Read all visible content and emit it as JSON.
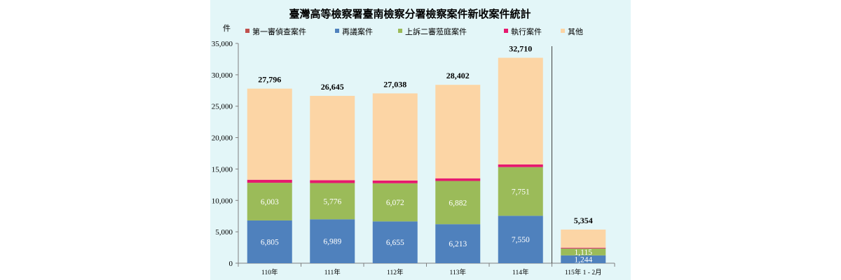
{
  "chart_data": {
    "type": "bar",
    "stacked": true,
    "title": "臺灣高等檢察署臺南檢察分署檢察案件新收案件統計",
    "ylabel": "件",
    "ylim": [
      0,
      35000
    ],
    "yticks": [
      "0",
      "5,000",
      "10,000",
      "15,000",
      "20,000",
      "25,000",
      "30,000",
      "35,000"
    ],
    "categories": [
      "110年",
      "111年",
      "112年",
      "113年",
      "114年",
      "115年 1 - 2月"
    ],
    "series": [
      {
        "name": "第一審偵查案件",
        "color": "#c0504d",
        "values": [
          0,
          0,
          0,
          0,
          0,
          0
        ],
        "labels": [
          "",
          "",
          "",
          "",
          "",
          ""
        ]
      },
      {
        "name": "再議案件",
        "color": "#4f81bd",
        "values": [
          6805,
          6989,
          6655,
          6213,
          7550,
          1244
        ],
        "labels": [
          "6,805",
          "6,989",
          "6,655",
          "6,213",
          "7,550",
          "1,244"
        ]
      },
      {
        "name": "上訴二審蒞庭案件",
        "color": "#9bbb59",
        "values": [
          6003,
          5776,
          6072,
          6882,
          7751,
          1115
        ],
        "labels": [
          "6,003",
          "5,776",
          "6,072",
          "6,882",
          "7,751",
          "1,115"
        ]
      },
      {
        "name": "執行案件",
        "color": "#e6196e",
        "values": [
          480,
          450,
          440,
          420,
          430,
          110
        ],
        "labels": [
          "",
          "",
          "",
          "",
          "",
          ""
        ]
      },
      {
        "name": "其他",
        "color": "#fcd5a5",
        "values": [
          14508,
          13430,
          13871,
          14887,
          16979,
          2885
        ],
        "labels": [
          "",
          "",
          "",
          "",
          "",
          ""
        ]
      }
    ],
    "totals": [
      "27,796",
      "26,645",
      "27,038",
      "28,402",
      "32,710",
      "5,354"
    ],
    "separator_before_last": true,
    "grid": false,
    "legend": "top"
  }
}
